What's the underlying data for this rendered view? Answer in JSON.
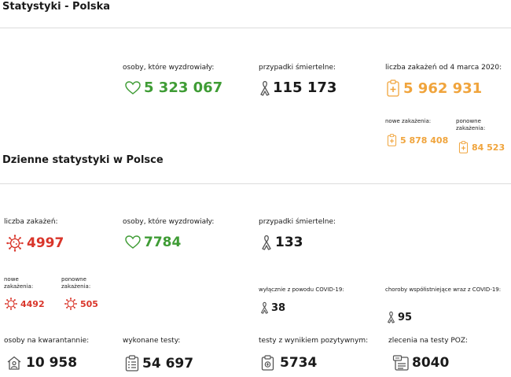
{
  "header": {
    "title": "Statystyki - Polska"
  },
  "summary": {
    "recovered_label": "osoby, które wyzdrowiały:",
    "recovered_value": "5 323 067",
    "deaths_label": "przypadki śmiertelne:",
    "deaths_value": "115 173",
    "infections_label": "liczba zakażeń od 4 marca 2020:",
    "infections_value": "5 962 931",
    "new_label": "nowe zakażenia:",
    "new_value": "5 878 408",
    "repeat_label": "ponowne zakażenia:",
    "repeat_value": "84 523"
  },
  "daily": {
    "title": "Dzienne statystyki w Polsce",
    "infections_label": "liczba zakażeń:",
    "infections_value": "4997",
    "recovered_label": "osoby, które wyzdrowiały:",
    "recovered_value": "7784",
    "deaths_label": "przypadki śmiertelne:",
    "deaths_value": "133",
    "new_label": "nowe zakażenia:",
    "new_value": "4492",
    "repeat_label": "ponowne zakażenia:",
    "repeat_value": "505",
    "covid_only_label": "wyłącznie z powodu COVID-19:",
    "covid_only_value": "38",
    "comorbid_label": "choroby współistniejące wraz z COVID-19:",
    "comorbid_value": "95",
    "quarantine_label": "osoby na kwarantannie:",
    "quarantine_value": "10 958",
    "tests_label": "wykonane testy:",
    "tests_value": "54 697",
    "positive_label": "testy z wynikiem pozytywnym:",
    "positive_value": "5734",
    "poz_label": "zlecenia na testy POZ:",
    "poz_value": "8040"
  },
  "colors": {
    "green": "#3f9c35",
    "orange": "#f0a43c",
    "red": "#d9352a",
    "text": "#1a1a1a"
  },
  "icons": [
    "heart-icon",
    "ribbon-icon",
    "clipboard-plus-icon",
    "virus-icon",
    "house-person-icon",
    "clipboard-list-icon",
    "test-tube-icon",
    "referral-icon"
  ]
}
